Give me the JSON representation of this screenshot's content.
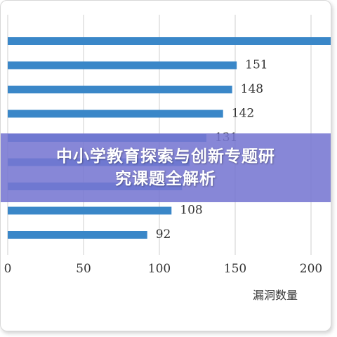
{
  "chart_data": {
    "type": "bar",
    "orientation": "horizontal",
    "values": [
      224,
      151,
      148,
      142,
      131,
      120,
      115,
      108,
      92
    ],
    "data_labels": [
      "",
      "151",
      "148",
      "142",
      "131",
      "",
      "",
      "108",
      "92"
    ],
    "xlim": [
      0,
      220
    ],
    "xticks": [
      "0",
      "50",
      "100",
      "150",
      "200"
    ],
    "xlabel": "漏洞数量",
    "grid": true,
    "bar_color": "#3a87c8",
    "grid_color": "#cfcfcf"
  },
  "banner": {
    "line1": "中小学教育探索与创新专题研",
    "line2": "究课题全解析",
    "background": "#7676d2"
  }
}
